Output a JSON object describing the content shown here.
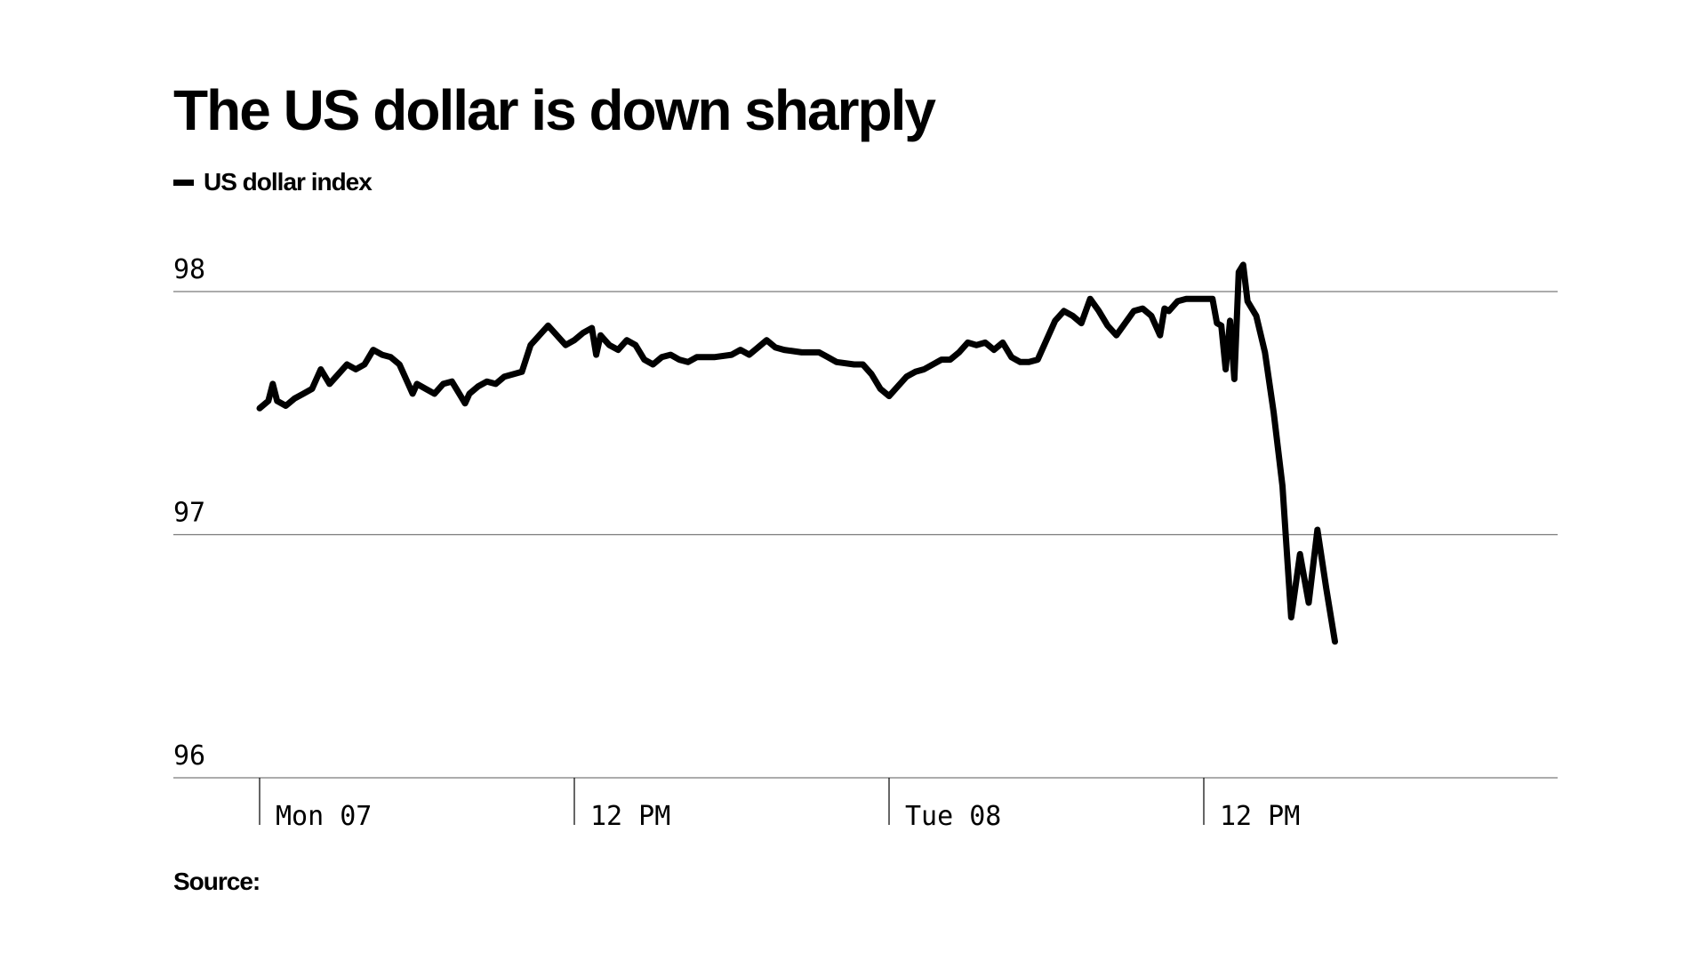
{
  "chart_data": {
    "type": "line",
    "title": "The US dollar is down sharply",
    "subtitle": "",
    "xlabel": "",
    "ylabel": "",
    "source": "Source:",
    "legend_position": "top-left",
    "grid": true,
    "ylim": [
      96,
      98.2
    ],
    "yticks": [
      {
        "value": 98,
        "label": "98"
      },
      {
        "value": 97,
        "label": "97"
      },
      {
        "value": 96,
        "label": "96"
      }
    ],
    "xlim": [
      "Mon 07 00:00",
      "Tue 08 22:36"
    ],
    "xticks": [
      {
        "value": "Mon 07 00:00",
        "label": "Mon 07"
      },
      {
        "value": "Mon 07 12:00",
        "label": "12 PM"
      },
      {
        "value": "Tue 08 00:00",
        "label": "Tue 08"
      },
      {
        "value": "Tue 08 12:00",
        "label": "12 PM"
      }
    ],
    "series": [
      {
        "name": "US dollar index",
        "color": "#000000",
        "points": [
          [
            "Mon 07 00:00",
            97.52
          ],
          [
            "Mon 07 00:20",
            97.55
          ],
          [
            "Mon 07 00:30",
            97.62
          ],
          [
            "Mon 07 00:40",
            97.55
          ],
          [
            "Mon 07 01:00",
            97.53
          ],
          [
            "Mon 07 01:20",
            97.56
          ],
          [
            "Mon 07 01:40",
            97.58
          ],
          [
            "Mon 07 02:00",
            97.6
          ],
          [
            "Mon 07 02:20",
            97.68
          ],
          [
            "Mon 07 02:40",
            97.62
          ],
          [
            "Mon 07 03:00",
            97.66
          ],
          [
            "Mon 07 03:20",
            97.7
          ],
          [
            "Mon 07 03:40",
            97.68
          ],
          [
            "Mon 07 04:00",
            97.7
          ],
          [
            "Mon 07 04:20",
            97.76
          ],
          [
            "Mon 07 04:40",
            97.74
          ],
          [
            "Mon 07 05:00",
            97.73
          ],
          [
            "Mon 07 05:20",
            97.7
          ],
          [
            "Mon 07 05:40",
            97.62
          ],
          [
            "Mon 07 05:50",
            97.58
          ],
          [
            "Mon 07 06:00",
            97.62
          ],
          [
            "Mon 07 06:20",
            97.6
          ],
          [
            "Mon 07 06:40",
            97.58
          ],
          [
            "Mon 07 07:00",
            97.62
          ],
          [
            "Mon 07 07:20",
            97.63
          ],
          [
            "Mon 07 07:40",
            97.57
          ],
          [
            "Mon 07 07:50",
            97.54
          ],
          [
            "Mon 07 08:00",
            97.58
          ],
          [
            "Mon 07 08:20",
            97.61
          ],
          [
            "Mon 07 08:40",
            97.63
          ],
          [
            "Mon 07 09:00",
            97.62
          ],
          [
            "Mon 07 09:20",
            97.65
          ],
          [
            "Mon 07 09:40",
            97.66
          ],
          [
            "Mon 07 10:00",
            97.67
          ],
          [
            "Mon 07 10:20",
            97.78
          ],
          [
            "Mon 07 10:40",
            97.82
          ],
          [
            "Mon 07 11:00",
            97.86
          ],
          [
            "Mon 07 11:20",
            97.82
          ],
          [
            "Mon 07 11:40",
            97.78
          ],
          [
            "Mon 07 12:00",
            97.8
          ],
          [
            "Mon 07 12:20",
            97.83
          ],
          [
            "Mon 07 12:40",
            97.85
          ],
          [
            "Mon 07 12:50",
            97.74
          ],
          [
            "Mon 07 13:00",
            97.82
          ],
          [
            "Mon 07 13:20",
            97.78
          ],
          [
            "Mon 07 13:40",
            97.76
          ],
          [
            "Mon 07 14:00",
            97.8
          ],
          [
            "Mon 07 14:20",
            97.78
          ],
          [
            "Mon 07 14:40",
            97.72
          ],
          [
            "Mon 07 15:00",
            97.7
          ],
          [
            "Mon 07 15:20",
            97.73
          ],
          [
            "Mon 07 15:40",
            97.74
          ],
          [
            "Mon 07 16:00",
            97.72
          ],
          [
            "Mon 07 16:20",
            97.71
          ],
          [
            "Mon 07 16:40",
            97.73
          ],
          [
            "Mon 07 17:20",
            97.73
          ],
          [
            "Mon 07 18:00",
            97.74
          ],
          [
            "Mon 07 18:20",
            97.76
          ],
          [
            "Mon 07 18:40",
            97.74
          ],
          [
            "Mon 07 19:00",
            97.77
          ],
          [
            "Mon 07 19:20",
            97.8
          ],
          [
            "Mon 07 19:40",
            97.77
          ],
          [
            "Mon 07 20:00",
            97.76
          ],
          [
            "Mon 07 20:40",
            97.75
          ],
          [
            "Mon 07 21:20",
            97.75
          ],
          [
            "Mon 07 21:40",
            97.73
          ],
          [
            "Mon 07 22:00",
            97.71
          ],
          [
            "Mon 07 22:40",
            97.7
          ],
          [
            "Mon 07 23:00",
            97.7
          ],
          [
            "Mon 07 23:20",
            97.66
          ],
          [
            "Mon 07 23:40",
            97.6
          ],
          [
            "Tue 08 00:00",
            97.57
          ],
          [
            "Tue 08 00:20",
            97.61
          ],
          [
            "Tue 08 00:40",
            97.65
          ],
          [
            "Tue 08 01:00",
            97.67
          ],
          [
            "Tue 08 01:20",
            97.68
          ],
          [
            "Tue 08 01:40",
            97.7
          ],
          [
            "Tue 08 02:00",
            97.72
          ],
          [
            "Tue 08 02:20",
            97.72
          ],
          [
            "Tue 08 02:40",
            97.75
          ],
          [
            "Tue 08 03:00",
            97.79
          ],
          [
            "Tue 08 03:20",
            97.78
          ],
          [
            "Tue 08 03:40",
            97.79
          ],
          [
            "Tue 08 04:00",
            97.76
          ],
          [
            "Tue 08 04:20",
            97.79
          ],
          [
            "Tue 08 04:40",
            97.73
          ],
          [
            "Tue 08 05:00",
            97.71
          ],
          [
            "Tue 08 05:20",
            97.71
          ],
          [
            "Tue 08 05:40",
            97.72
          ],
          [
            "Tue 08 06:00",
            97.8
          ],
          [
            "Tue 08 06:20",
            97.88
          ],
          [
            "Tue 08 06:40",
            97.92
          ],
          [
            "Tue 08 07:00",
            97.9
          ],
          [
            "Tue 08 07:20",
            97.87
          ],
          [
            "Tue 08 07:40",
            97.97
          ],
          [
            "Tue 08 08:00",
            97.92
          ],
          [
            "Tue 08 08:20",
            97.86
          ],
          [
            "Tue 08 08:40",
            97.82
          ],
          [
            "Tue 08 09:00",
            97.87
          ],
          [
            "Tue 08 09:20",
            97.92
          ],
          [
            "Tue 08 09:40",
            97.93
          ],
          [
            "Tue 08 10:00",
            97.9
          ],
          [
            "Tue 08 10:20",
            97.82
          ],
          [
            "Tue 08 10:30",
            97.93
          ],
          [
            "Tue 08 10:40",
            97.92
          ],
          [
            "Tue 08 11:00",
            97.96
          ],
          [
            "Tue 08 11:20",
            97.97
          ],
          [
            "Tue 08 12:00",
            97.97
          ],
          [
            "Tue 08 12:20",
            97.97
          ],
          [
            "Tue 08 12:30",
            97.87
          ],
          [
            "Tue 08 12:40",
            97.86
          ],
          [
            "Tue 08 12:50",
            97.68
          ],
          [
            "Tue 08 13:00",
            97.88
          ],
          [
            "Tue 08 13:10",
            97.64
          ],
          [
            "Tue 08 13:20",
            98.08
          ],
          [
            "Tue 08 13:30",
            98.11
          ],
          [
            "Tue 08 13:40",
            97.96
          ],
          [
            "Tue 08 14:00",
            97.9
          ],
          [
            "Tue 08 14:20",
            97.75
          ],
          [
            "Tue 08 14:40",
            97.5
          ],
          [
            "Tue 08 15:00",
            97.2
          ],
          [
            "Tue 08 15:20",
            96.66
          ],
          [
            "Tue 08 15:40",
            96.92
          ],
          [
            "Tue 08 16:00",
            96.72
          ],
          [
            "Tue 08 16:20",
            97.02
          ],
          [
            "Tue 08 16:40",
            96.78
          ],
          [
            "Tue 08 17:00",
            96.56
          ]
        ]
      }
    ]
  }
}
